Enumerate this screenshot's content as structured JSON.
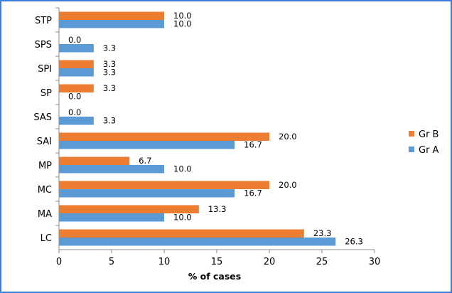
{
  "chart_data": {
    "type": "bar",
    "orientation": "horizontal",
    "categories": [
      "LC",
      "MA",
      "MC",
      "MP",
      "SAI",
      "SAS",
      "SP",
      "SPI",
      "SPS",
      "STP"
    ],
    "series": [
      {
        "name": "Gr A",
        "color": "#5b9bd5",
        "values": [
          26.3,
          10.0,
          16.7,
          10.0,
          16.7,
          3.3,
          0.0,
          3.3,
          3.3,
          10.0
        ]
      },
      {
        "name": "Gr B",
        "color": "#ed7d31",
        "values": [
          23.3,
          13.3,
          20.0,
          6.7,
          20.0,
          0.0,
          3.3,
          3.3,
          0.0,
          10.0
        ]
      }
    ],
    "xlabel": "% of cases",
    "ylabel": "",
    "xlim": [
      0,
      30
    ],
    "xticks": [
      0,
      5,
      10,
      15,
      20,
      25,
      30
    ],
    "grid": false,
    "legend_position": "right",
    "data_labels": true
  }
}
